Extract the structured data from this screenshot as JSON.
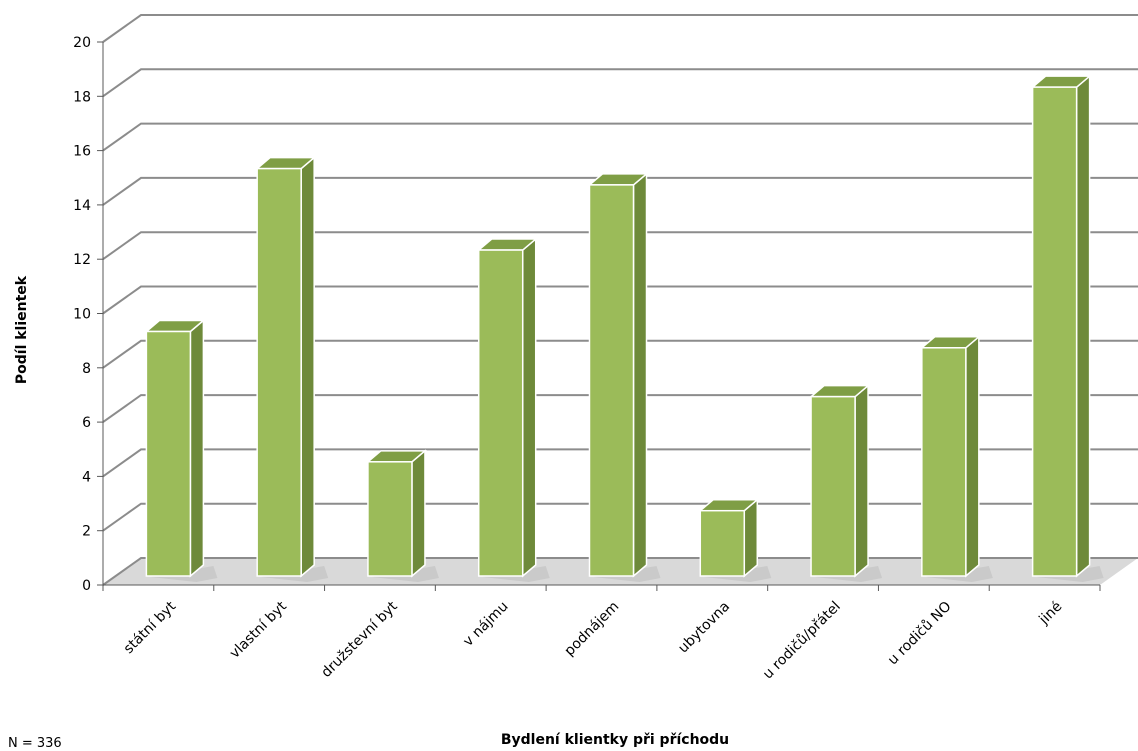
{
  "chart_data": {
    "type": "bar",
    "categories": [
      "státní byt",
      "vlastní byt",
      "družstevní byt",
      "v nájmu",
      "podnájem",
      "ubytovna",
      "u rodičů/přátel",
      "u rodičů NO",
      "jiné"
    ],
    "values": [
      10,
      16,
      5.2,
      13,
      15.4,
      3.4,
      7.6,
      9.4,
      19
    ],
    "title": "",
    "xlabel": "Bydlení klientky při příchodu",
    "ylabel": "Podíl klientek",
    "ylim": [
      0,
      20
    ],
    "yticks": [
      0,
      2,
      4,
      6,
      8,
      10,
      12,
      14,
      16,
      18,
      20
    ],
    "grid": true,
    "legend": "none",
    "colors": {
      "bar_front": "#9bbb59",
      "bar_side": "#6e8a3a",
      "bar_top": "#7f9e45",
      "grid": "#8c8c8c"
    }
  },
  "note": "N =  336"
}
